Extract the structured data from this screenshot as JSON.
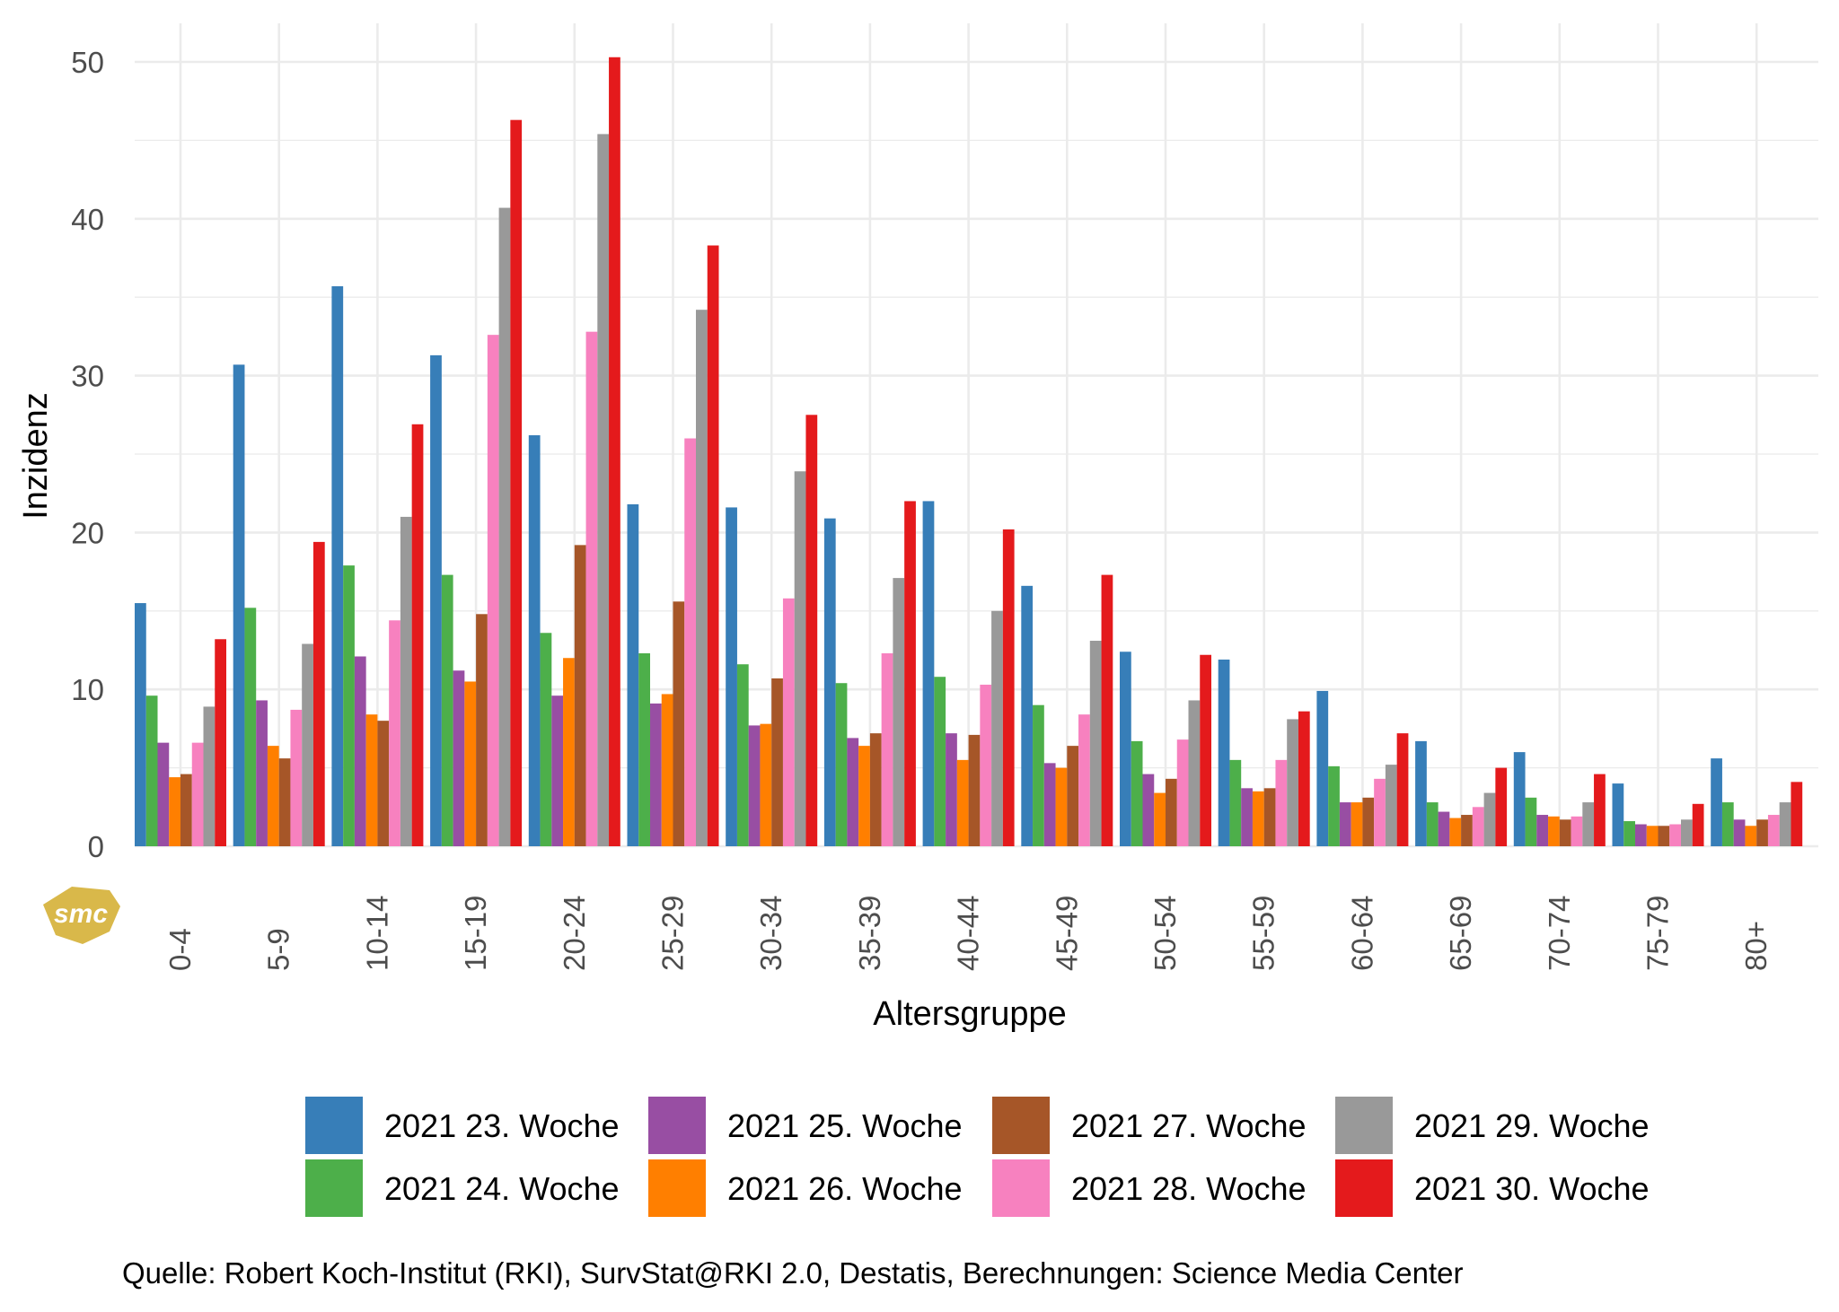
{
  "chart_data": {
    "type": "bar",
    "title": "",
    "xlabel": "Altersgruppe",
    "ylabel": "Inzidenz",
    "ylim": [
      0,
      52
    ],
    "yticks": [
      0,
      10,
      20,
      30,
      40,
      50
    ],
    "grid": true,
    "legend_position": "bottom",
    "categories": [
      "0-4",
      "5-9",
      "10-14",
      "15-19",
      "20-24",
      "25-29",
      "30-34",
      "35-39",
      "40-44",
      "45-49",
      "50-54",
      "55-59",
      "60-64",
      "65-69",
      "70-74",
      "75-79",
      "80+"
    ],
    "series": [
      {
        "name": "2021 23. Woche",
        "color": "#377EB8",
        "values": [
          15.5,
          30.7,
          35.7,
          31.3,
          26.2,
          21.8,
          21.6,
          20.9,
          22.0,
          16.6,
          12.4,
          11.9,
          9.9,
          6.7,
          6.0,
          4.0,
          5.6
        ]
      },
      {
        "name": "2021 24. Woche",
        "color": "#4DAF4A",
        "values": [
          9.6,
          15.2,
          17.9,
          17.3,
          13.6,
          12.3,
          11.6,
          10.4,
          10.8,
          9.0,
          6.7,
          5.5,
          5.1,
          2.8,
          3.1,
          1.6,
          2.8
        ]
      },
      {
        "name": "2021 25. Woche",
        "color": "#984EA3",
        "values": [
          6.6,
          9.3,
          12.1,
          11.2,
          9.6,
          9.1,
          7.7,
          6.9,
          7.2,
          5.3,
          4.6,
          3.7,
          2.8,
          2.2,
          2.0,
          1.4,
          1.7
        ]
      },
      {
        "name": "2021 26. Woche",
        "color": "#FF7F00",
        "values": [
          4.4,
          6.4,
          8.4,
          10.5,
          12.0,
          9.7,
          7.8,
          6.4,
          5.5,
          5.0,
          3.4,
          3.5,
          2.8,
          1.8,
          1.9,
          1.3,
          1.3
        ]
      },
      {
        "name": "2021 27. Woche",
        "color": "#A65628",
        "values": [
          4.6,
          5.6,
          8.0,
          14.8,
          19.2,
          15.6,
          10.7,
          7.2,
          7.1,
          6.4,
          4.3,
          3.7,
          3.1,
          2.0,
          1.7,
          1.3,
          1.7
        ]
      },
      {
        "name": "2021 28. Woche",
        "color": "#F781BF",
        "values": [
          6.6,
          8.7,
          14.4,
          32.6,
          32.8,
          26.0,
          15.8,
          12.3,
          10.3,
          8.4,
          6.8,
          5.5,
          4.3,
          2.5,
          1.9,
          1.4,
          2.0
        ]
      },
      {
        "name": "2021 29. Woche",
        "color": "#999999",
        "values": [
          8.9,
          12.9,
          21.0,
          40.7,
          45.4,
          34.2,
          23.9,
          17.1,
          15.0,
          13.1,
          9.3,
          8.1,
          5.2,
          3.4,
          2.8,
          1.7,
          2.8
        ]
      },
      {
        "name": "2021 30. Woche",
        "color": "#E41A1C",
        "values": [
          13.2,
          19.4,
          26.9,
          46.3,
          50.3,
          38.3,
          27.5,
          22.0,
          20.2,
          17.3,
          12.2,
          8.6,
          7.2,
          5.0,
          4.6,
          2.7,
          4.1
        ]
      }
    ]
  },
  "caption": "Quelle: Robert Koch-Institut (RKI), SurvStat@RKI 2.0, Destatis, Berechnungen: Science Media Center",
  "logo": {
    "text": "smc",
    "color": "#D9B84A"
  }
}
